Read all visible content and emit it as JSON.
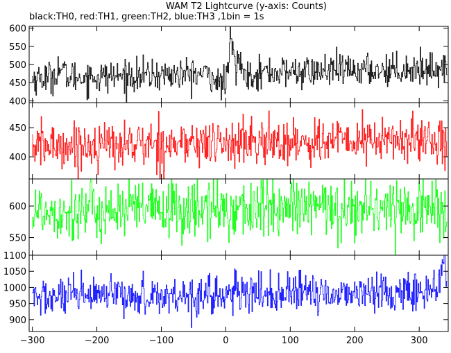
{
  "title": "WAM T2 Lightcurve (y-axis: Counts)",
  "subtitle": "black:TH0, red:TH1, green:TH2, blue:TH3 ,1bin = 1s",
  "chart_data": {
    "type": "line",
    "xlim": [
      -305,
      345
    ],
    "x_ticks": [
      -300,
      -200,
      -100,
      0,
      100,
      200,
      300
    ],
    "bin_seconds": 1,
    "panels": [
      {
        "name": "TH0",
        "color": "#000000",
        "ylim": [
          395,
          605
        ],
        "y_ticks": [
          400,
          450,
          500,
          550,
          600
        ],
        "mean": 462,
        "noise": 22,
        "trend_end": 28,
        "features": [
          {
            "type": "burst",
            "x_start": 5,
            "x_peak": 7,
            "x_end": 30,
            "peak": 605
          },
          {
            "type": "bump",
            "x_center": -258,
            "width": 8,
            "height": 25
          },
          {
            "type": "dip",
            "x_center": -8,
            "width": 10,
            "depth": 30
          }
        ]
      },
      {
        "name": "TH1",
        "color": "#ff0000",
        "ylim": [
          362,
          493
        ],
        "y_ticks": [
          400,
          450
        ],
        "mean": 418,
        "noise": 20,
        "trend_end": 12,
        "features": []
      },
      {
        "name": "TH2",
        "color": "#00ff00",
        "ylim": [
          522,
          643
        ],
        "y_ticks": [
          550,
          600
        ],
        "mean": 592,
        "noise": 24,
        "trend_end": 6,
        "features": []
      },
      {
        "name": "TH3",
        "color": "#0000ff",
        "ylim": [
          863,
          1100
        ],
        "y_ticks": [
          900,
          950,
          1000,
          1050,
          1100
        ],
        "mean": 968,
        "noise": 30,
        "trend_end": 20,
        "features": [
          {
            "type": "burst",
            "x_start": 330,
            "x_peak": 340,
            "x_end": 345,
            "peak": 1095
          }
        ]
      }
    ]
  }
}
